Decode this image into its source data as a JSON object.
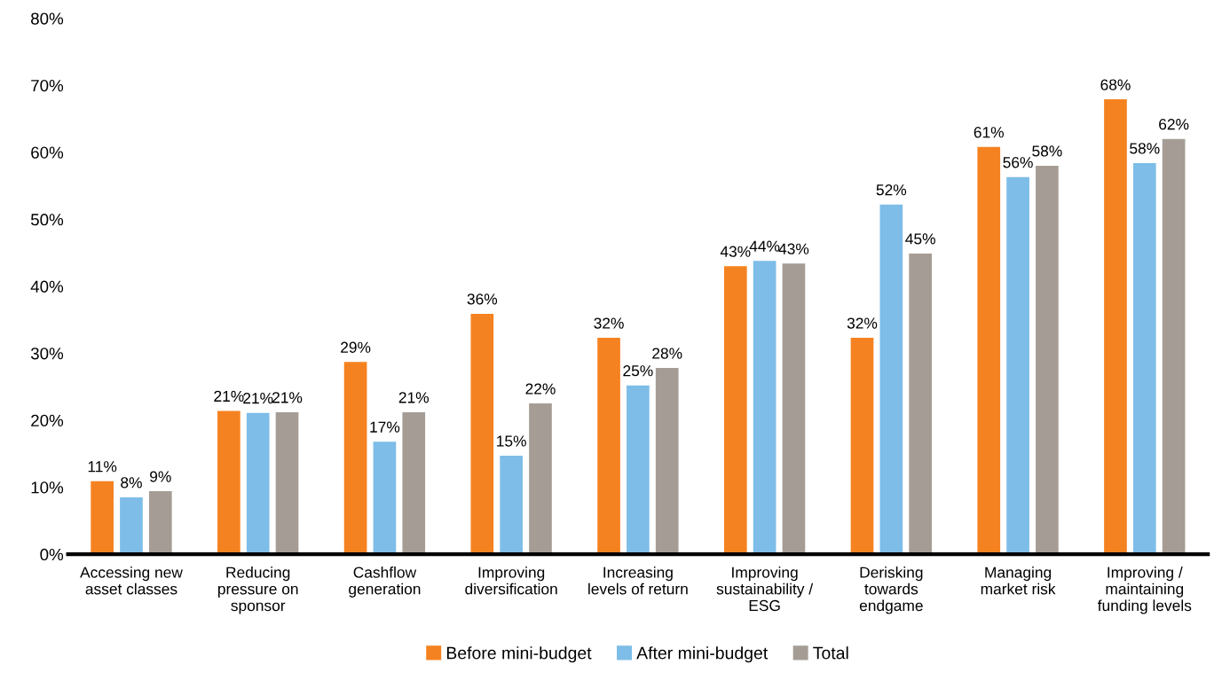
{
  "chart_data": {
    "type": "bar",
    "categories": [
      "Accessing new\nasset classes",
      "Reducing\npressure on\nsponsor",
      "Cashflow\ngeneration",
      "Improving\ndiversification",
      "Increasing\nlevels of return",
      "Improving\nsustainability /\nESG",
      "Derisking\ntowards\nendgame",
      "Managing\nmarket risk",
      "Improving /\nmaintaining\nfunding levels"
    ],
    "series": [
      {
        "name": "Before mini-budget",
        "color": "#f58220",
        "values": [
          10.9,
          21.4,
          28.7,
          35.9,
          32.3,
          43.0,
          32.3,
          60.8,
          67.9
        ],
        "value_labels": [
          "11%",
          "21%",
          "29%",
          "36%",
          "32%",
          "43%",
          "32%",
          "61%",
          "68%"
        ]
      },
      {
        "name": "After mini-budget",
        "color": "#7dbde8",
        "values": [
          8.5,
          21.1,
          16.8,
          14.7,
          25.2,
          43.8,
          52.2,
          56.3,
          58.4
        ],
        "value_labels": [
          "8%",
          "21%",
          "17%",
          "15%",
          "25%",
          "44%",
          "52%",
          "56%",
          "58%"
        ]
      },
      {
        "name": "Total",
        "color": "#a59d95",
        "values": [
          9.4,
          21.2,
          21.2,
          22.5,
          27.8,
          43.4,
          44.9,
          58.0,
          62.0
        ],
        "value_labels": [
          "9%",
          "21%",
          "21%",
          "22%",
          "28%",
          "43%",
          "45%",
          "58%",
          "62%"
        ]
      }
    ],
    "ylim": [
      0,
      80
    ],
    "yticks": [
      {
        "value": 0,
        "label": "0%"
      },
      {
        "value": 10,
        "label": "10%"
      },
      {
        "value": 20,
        "label": "20%"
      },
      {
        "value": 30,
        "label": "30%"
      },
      {
        "value": 40,
        "label": "40%"
      },
      {
        "value": 50,
        "label": "50%"
      },
      {
        "value": 60,
        "label": "60%"
      },
      {
        "value": 70,
        "label": "70%"
      },
      {
        "value": 80,
        "label": "80%"
      }
    ],
    "grid": false,
    "legend": "bottom"
  }
}
